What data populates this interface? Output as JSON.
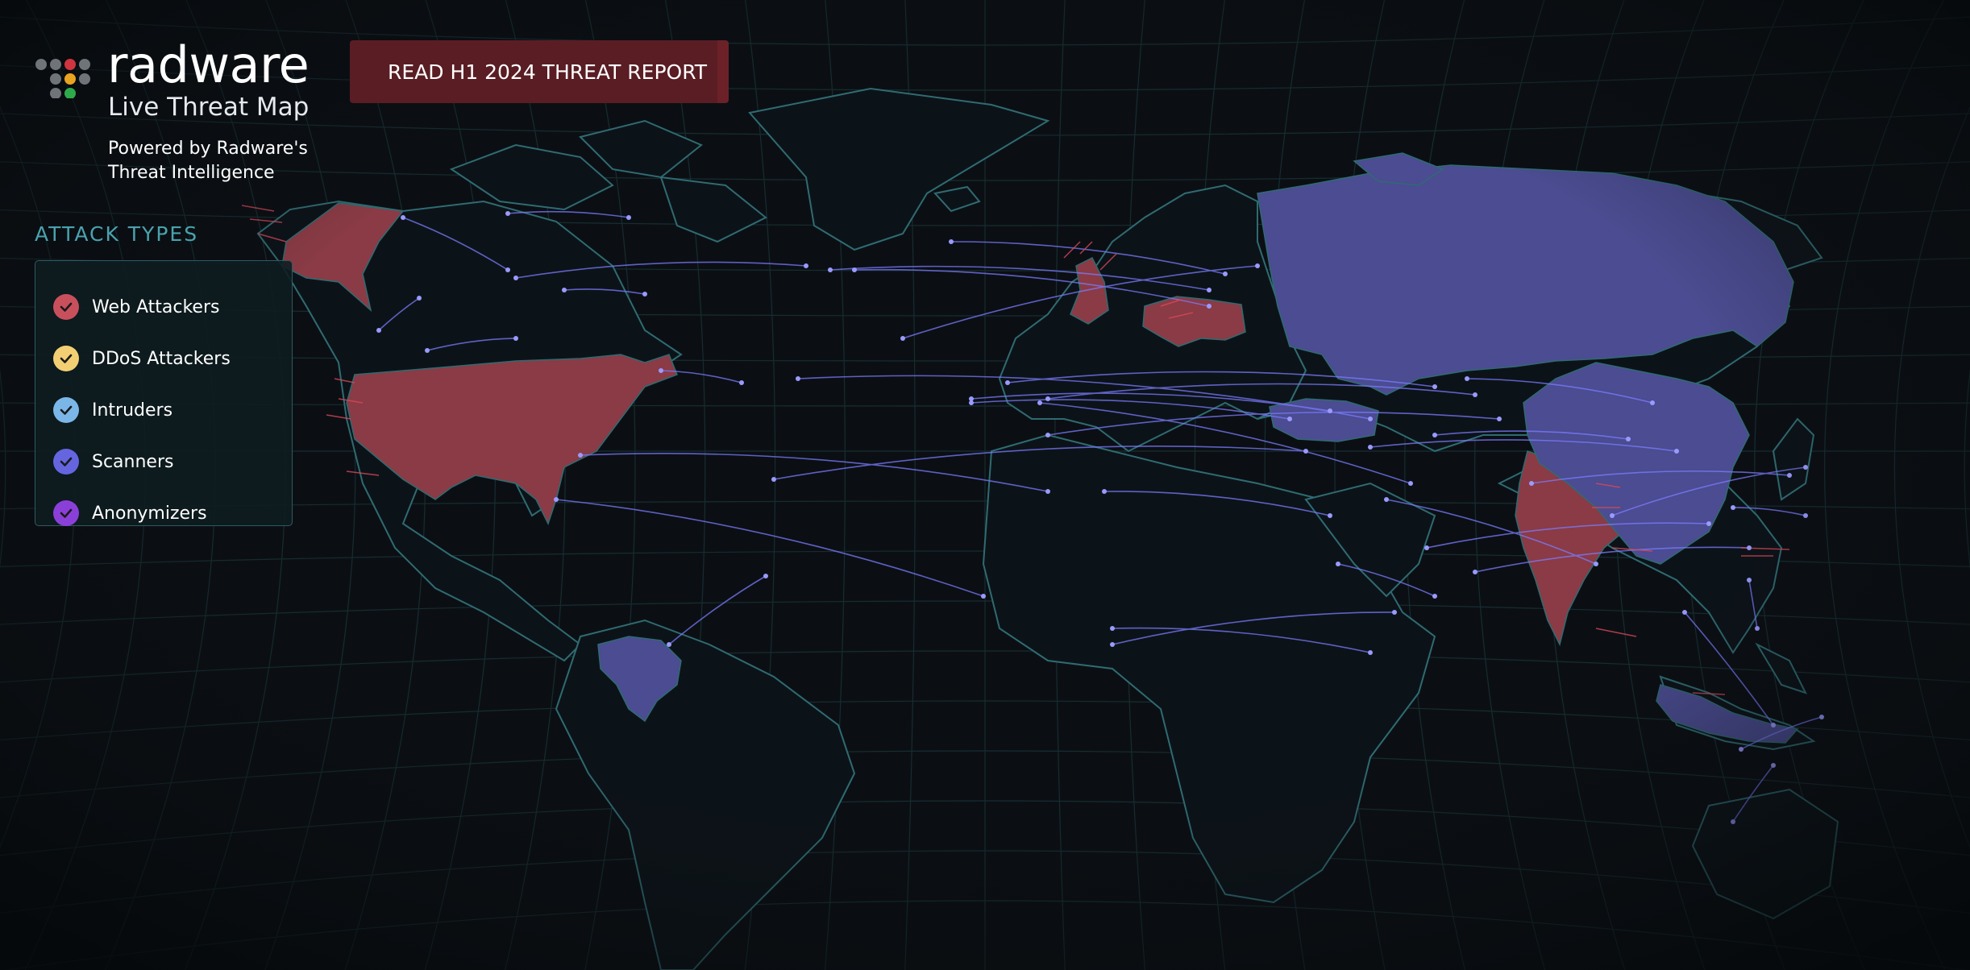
{
  "brand": {
    "name": "radware",
    "subtitle": "Live Threat Map",
    "powered_by": "Powered by Radware's Threat Intelligence"
  },
  "report_button": {
    "label": "READ H1 2024 THREAT REPORT"
  },
  "attack_types": {
    "title": "ATTACK TYPES",
    "items": [
      {
        "label": "Web Attackers",
        "color": "#c8505d",
        "checked": true
      },
      {
        "label": "DDoS Attackers",
        "color": "#f2cf73",
        "checked": true
      },
      {
        "label": "Intruders",
        "color": "#7bb6e8",
        "checked": true
      },
      {
        "label": "Scanners",
        "color": "#6665e0",
        "checked": true
      },
      {
        "label": "Anonymizers",
        "color": "#8b3fd9",
        "checked": true
      }
    ]
  },
  "map_colors": {
    "background": "#0b0f13",
    "land": "#0c1318",
    "coast": "#2f6b72",
    "highlight_web": "#8a3b45",
    "highlight_scanner": "#4b4c91",
    "scanner_arc": "#7b7bff",
    "web_streak": "#d9485a"
  },
  "highlighted_countries": {
    "web_attackers": [
      "United States",
      "Alaska",
      "United Kingdom",
      "Germany",
      "India"
    ],
    "scanners": [
      "Russia",
      "China",
      "Venezuela",
      "Turkey",
      "Indonesia"
    ]
  }
}
